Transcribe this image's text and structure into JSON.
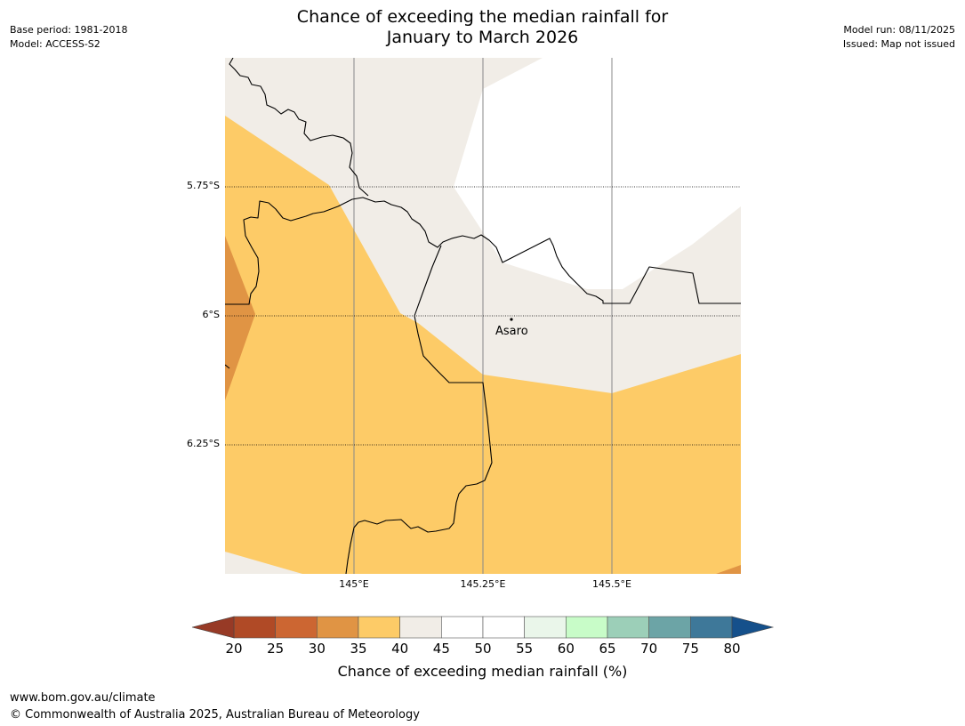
{
  "header": {
    "title_line1": "Chance of exceeding the median rainfall for",
    "title_line2": "January to March 2026",
    "base_period": "Base period: 1981-2018",
    "model": "Model: ACCESS-S2",
    "model_run": "Model run: 08/11/2025",
    "issued": "Issued: Map not issued"
  },
  "map": {
    "lat_labels": [
      "5.75°S",
      "6°S",
      "6.25°S"
    ],
    "lon_labels": [
      "145°E",
      "145.25°E",
      "145.5°E"
    ],
    "place": "Asaro",
    "colors": {
      "band_30_35": "#e09444",
      "band_35_40": "#fdcb67",
      "band_40_45": "#f1ede7",
      "band_45_55": "#ffffff"
    }
  },
  "colorbar": {
    "ticks": [
      "20",
      "25",
      "30",
      "35",
      "40",
      "45",
      "50",
      "55",
      "60",
      "65",
      "70",
      "75",
      "80"
    ],
    "colors": [
      "#b04a26",
      "#cc6632",
      "#e09444",
      "#fdcb67",
      "#f1ede7",
      "#ffffff",
      "#ffffff",
      "#eaf6ea",
      "#c8fcc8",
      "#9ccfb8",
      "#6ca4a6",
      "#3e7899"
    ],
    "under_color": "#973a26",
    "over_color": "#15508b",
    "label": "Chance of exceeding median rainfall (%)"
  },
  "footer": {
    "url": "www.bom.gov.au/climate",
    "copyright": "© Commonwealth of Australia 2025, Australian Bureau of Meteorology"
  }
}
